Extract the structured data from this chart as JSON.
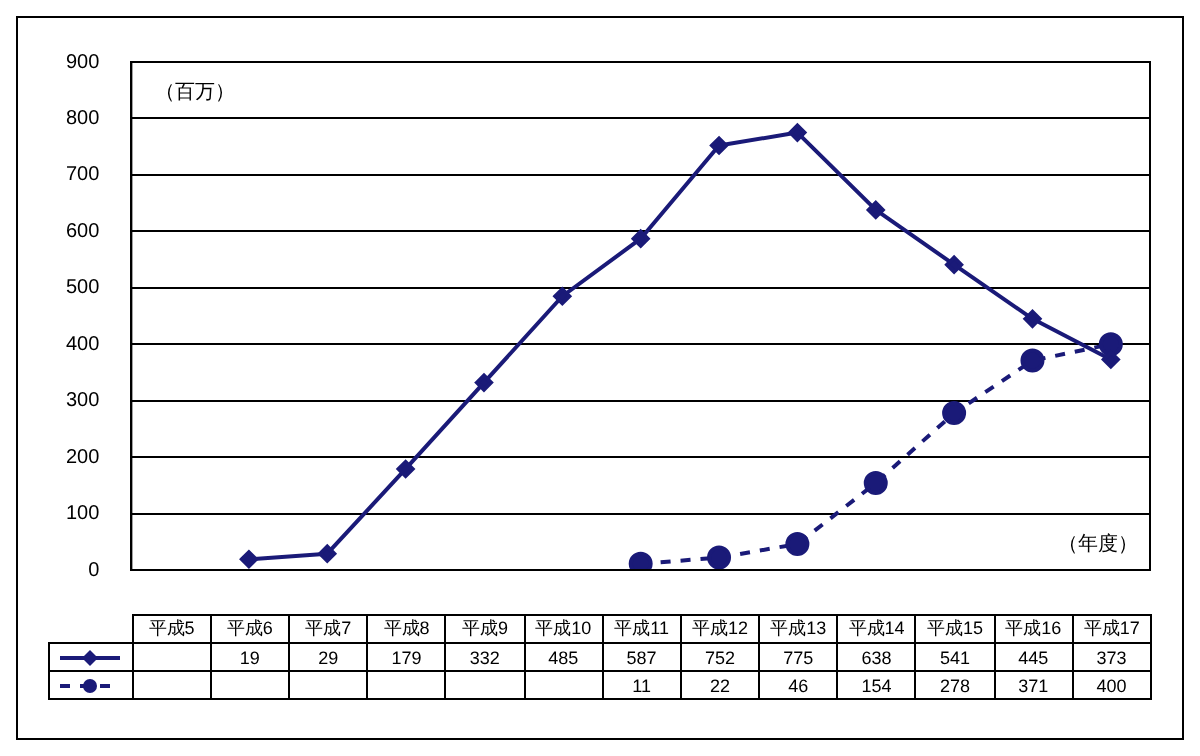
{
  "chart_data": {
    "type": "line",
    "categories": [
      "平成5",
      "平成6",
      "平成7",
      "平成8",
      "平成9",
      "平成10",
      "平成11",
      "平成12",
      "平成13",
      "平成14",
      "平成15",
      "平成16",
      "平成17"
    ],
    "series": [
      {
        "color": "#1a1a78",
        "marker": "diamond",
        "line_style": "solid",
        "values": [
          null,
          19,
          29,
          179,
          332,
          485,
          587,
          752,
          775,
          638,
          541,
          445,
          373
        ]
      },
      {
        "color": "#1a1a78",
        "marker": "circle",
        "line_style": "dashed",
        "values": [
          null,
          null,
          null,
          null,
          null,
          null,
          11,
          22,
          46,
          154,
          278,
          371,
          400
        ]
      }
    ],
    "ylim": [
      0,
      900
    ],
    "yticks": [
      0,
      100,
      200,
      300,
      400,
      500,
      600,
      700,
      800,
      900
    ],
    "grid": "y",
    "data_labels": true,
    "annotations": [
      "（百万）",
      "（年度）"
    ]
  }
}
